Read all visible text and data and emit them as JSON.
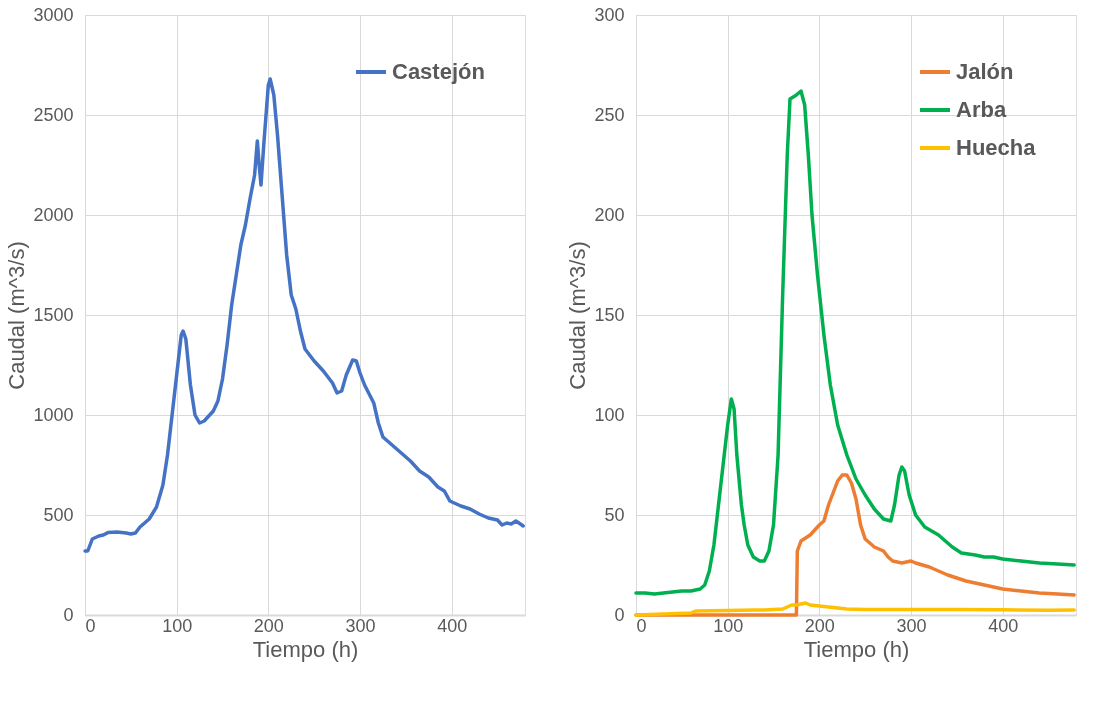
{
  "chart_data": [
    {
      "type": "line",
      "xlabel": "Tiempo (h)",
      "ylabel": "Caudal (m^3/s)",
      "xlim": [
        0,
        480
      ],
      "xticks": [
        0,
        100,
        200,
        300,
        400
      ],
      "ylim": [
        0,
        3000
      ],
      "yticks": [
        0,
        500,
        1000,
        1500,
        2000,
        2500,
        3000
      ],
      "grid": true,
      "legend": "top right",
      "line_style": "solid",
      "marker": "none",
      "series": [
        {
          "name": "Castejón",
          "color": "#4472c4",
          "x": [
            0,
            3,
            8,
            15,
            20,
            25,
            35,
            45,
            50,
            55,
            60,
            70,
            78,
            85,
            90,
            95,
            100,
            105,
            107,
            110,
            115,
            120,
            125,
            130,
            140,
            145,
            150,
            155,
            160,
            165,
            170,
            175,
            180,
            185,
            188,
            190,
            192,
            195,
            200,
            202,
            206,
            210,
            215,
            220,
            225,
            230,
            235,
            240,
            250,
            260,
            270,
            275,
            280,
            285,
            292,
            296,
            300,
            305,
            315,
            320,
            325,
            335,
            345,
            355,
            365,
            375,
            385,
            392,
            398,
            410,
            420,
            430,
            440,
            450,
            455,
            460,
            465,
            470,
            475,
            478
          ],
          "values": [
            320,
            320,
            380,
            395,
            400,
            412,
            415,
            410,
            405,
            410,
            440,
            480,
            540,
            650,
            800,
            1000,
            1200,
            1400,
            1420,
            1380,
            1150,
            1000,
            960,
            970,
            1020,
            1070,
            1180,
            1350,
            1550,
            1700,
            1850,
            1950,
            2080,
            2200,
            2370,
            2250,
            2150,
            2350,
            2650,
            2680,
            2600,
            2400,
            2100,
            1800,
            1600,
            1530,
            1420,
            1330,
            1270,
            1220,
            1160,
            1110,
            1120,
            1200,
            1275,
            1270,
            1210,
            1150,
            1060,
            960,
            890,
            850,
            810,
            770,
            720,
            690,
            640,
            620,
            570,
            545,
            530,
            505,
            485,
            475,
            450,
            460,
            455,
            470,
            455,
            445
          ]
        }
      ]
    },
    {
      "type": "line",
      "xlabel": "Tiempo (h)",
      "ylabel": "Caudal (m^3/s)",
      "xlim": [
        0,
        480
      ],
      "xticks": [
        0,
        100,
        200,
        300,
        400
      ],
      "ylim": [
        0,
        300
      ],
      "yticks": [
        0,
        50,
        100,
        150,
        200,
        250,
        300
      ],
      "grid": true,
      "legend": "top right",
      "line_style": "solid",
      "marker": "none",
      "series": [
        {
          "name": "Jalón",
          "color": "#ed7d31",
          "x": [
            0,
            175,
            176,
            180,
            190,
            200,
            205,
            210,
            220,
            225,
            230,
            235,
            240,
            245,
            250,
            260,
            270,
            275,
            280,
            290,
            300,
            305,
            320,
            340,
            360,
            380,
            400,
            420,
            440,
            460,
            478
          ],
          "values": [
            0,
            0,
            32,
            37,
            40,
            45,
            47,
            55,
            67,
            70,
            70,
            66,
            58,
            45,
            38,
            34,
            32,
            29,
            27,
            26,
            27,
            26,
            24,
            20,
            17,
            15,
            13,
            12,
            11,
            10.5,
            10
          ]
        },
        {
          "name": "Arba",
          "color": "#00b050",
          "x": [
            0,
            10,
            20,
            30,
            40,
            50,
            60,
            70,
            75,
            80,
            85,
            90,
            95,
            100,
            104,
            107,
            110,
            115,
            118,
            122,
            128,
            135,
            140,
            145,
            150,
            155,
            160,
            165,
            168,
            175,
            180,
            184,
            188,
            192,
            198,
            205,
            212,
            220,
            230,
            240,
            250,
            260,
            270,
            278,
            282,
            287,
            290,
            293,
            298,
            305,
            315,
            330,
            345,
            355,
            370,
            380,
            390,
            400,
            420,
            440,
            460,
            478
          ],
          "values": [
            11,
            11,
            10.5,
            11,
            11.5,
            12,
            12,
            13,
            15,
            22,
            35,
            55,
            75,
            95,
            108,
            103,
            80,
            55,
            45,
            35,
            29,
            27,
            27,
            32,
            45,
            80,
            160,
            230,
            258,
            260,
            262,
            255,
            230,
            200,
            170,
            140,
            115,
            95,
            80,
            68,
            60,
            53,
            48,
            47,
            55,
            70,
            74,
            72,
            60,
            50,
            44,
            40,
            34,
            31,
            30,
            29,
            29,
            28,
            27,
            26,
            25.5,
            25
          ]
        },
        {
          "name": "Huecha",
          "color": "#ffc000",
          "x": [
            0,
            30,
            60,
            65,
            100,
            130,
            140,
            160,
            170,
            175,
            185,
            190,
            210,
            230,
            250,
            300,
            350,
            400,
            450,
            478
          ],
          "values": [
            0,
            0.5,
            1,
            2,
            2.3,
            2.5,
            2.5,
            3,
            5,
            5,
            6,
            5,
            4,
            3,
            2.7,
            2.8,
            2.7,
            2.6,
            2.4,
            2.5
          ]
        }
      ]
    }
  ]
}
